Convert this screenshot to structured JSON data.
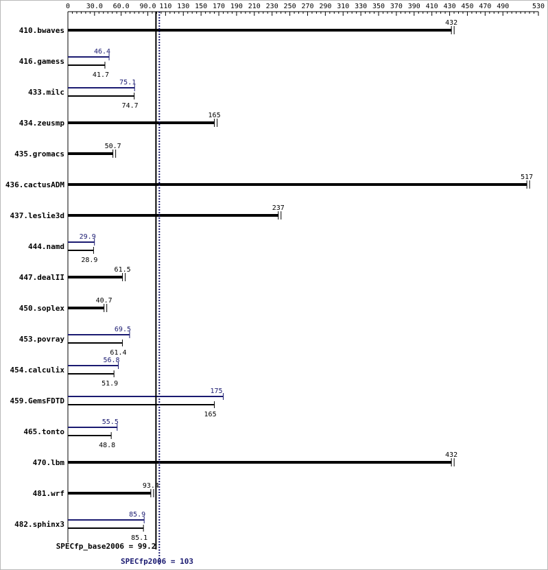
{
  "chart_data": {
    "type": "bar",
    "xlim": [
      0,
      530
    ],
    "grid": false,
    "ticks": [
      0,
      30.0,
      60.0,
      90.0,
      110,
      130,
      150,
      170,
      190,
      210,
      230,
      250,
      270,
      290,
      310,
      330,
      350,
      370,
      390,
      410,
      430,
      450,
      470,
      490,
      530
    ],
    "tick_labels": [
      "0",
      "30.0",
      "60.0",
      "90.0",
      "110",
      "130",
      "150",
      "170",
      "190",
      "210",
      "230",
      "250",
      "270",
      "290",
      "310",
      "330",
      "350",
      "370",
      "390",
      "410",
      "430",
      "450",
      "470",
      "490",
      "530"
    ],
    "categories": [
      "410.bwaves",
      "416.gamess",
      "433.milc",
      "434.zeusmp",
      "435.gromacs",
      "436.cactusADM",
      "437.leslie3d",
      "444.namd",
      "447.dealII",
      "450.soplex",
      "453.povray",
      "454.calculix",
      "459.GemsFDTD",
      "465.tonto",
      "470.lbm",
      "481.wrf",
      "482.sphinx3"
    ],
    "series": [
      {
        "name": "SPECfp_base2006",
        "values": [
          432,
          41.7,
          74.7,
          165,
          50.7,
          517,
          237,
          28.9,
          61.5,
          40.7,
          61.4,
          51.9,
          165,
          48.8,
          432,
          93.4,
          85.1
        ],
        "labels": [
          "432",
          "41.7",
          "74.7",
          "165",
          "50.7",
          "517",
          "237",
          "28.9",
          "61.5",
          "40.7",
          "61.4",
          "51.9",
          "165",
          "48.8",
          "432",
          "93.4",
          "85.1"
        ]
      },
      {
        "name": "SPECfp2006",
        "values": [
          null,
          46.4,
          75.1,
          null,
          null,
          null,
          null,
          29.9,
          null,
          null,
          69.5,
          56.8,
          175,
          55.5,
          null,
          null,
          85.9
        ],
        "labels": [
          null,
          "46.4",
          "75.1",
          null,
          null,
          null,
          null,
          "29.9",
          null,
          null,
          "69.5",
          "56.8",
          "175",
          "55.5",
          null,
          null,
          "85.9"
        ]
      }
    ],
    "reference_lines": [
      {
        "name": "base",
        "value": 99.2,
        "label": "SPECfp_base2006 = 99.2",
        "color": "#000000"
      },
      {
        "name": "peak",
        "value": 103,
        "label": "SPECfp2006 = 103",
        "color": "#191970"
      }
    ]
  },
  "colors": {
    "base": "#000000",
    "peak": "#191970",
    "axis": "#000000"
  }
}
